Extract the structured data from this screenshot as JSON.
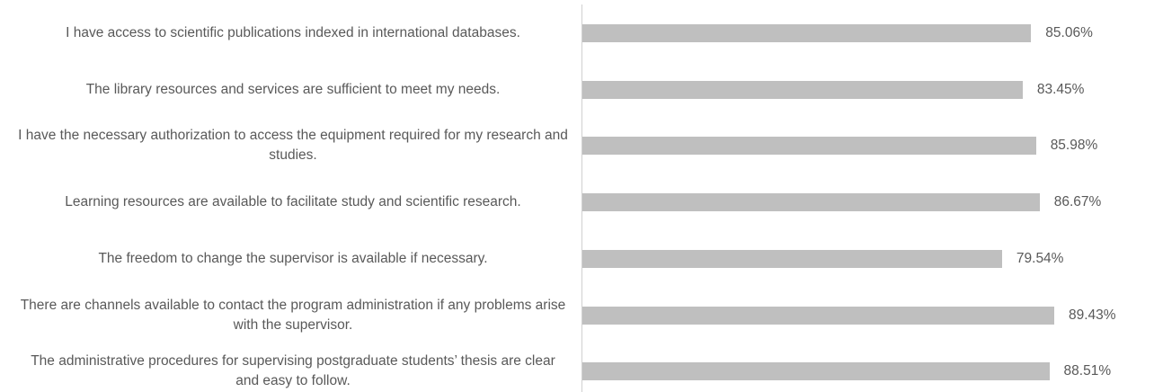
{
  "chart_data": {
    "type": "bar",
    "orientation": "horizontal",
    "categories": [
      "I have access to scientific publications indexed in international databases.",
      "The library resources and services are sufficient to meet my needs.",
      "I have the necessary authorization to access the equipment required for my research and studies.",
      "Learning resources are available to facilitate study and scientific research.",
      "The freedom to change the supervisor is available if necessary.",
      "There are channels available to contact the program administration if any problems arise with the supervisor.",
      "The administrative procedures for supervising postgraduate students’ thesis are clear and easy to follow."
    ],
    "values": [
      85.06,
      83.45,
      85.98,
      86.67,
      79.54,
      89.43,
      88.51
    ],
    "value_labels": [
      "85.06%",
      "83.45%",
      "85.98%",
      "86.67%",
      "79.54%",
      "89.43%",
      "88.51%"
    ],
    "color": "#bfbfbf",
    "xlim": [
      0,
      100
    ]
  }
}
